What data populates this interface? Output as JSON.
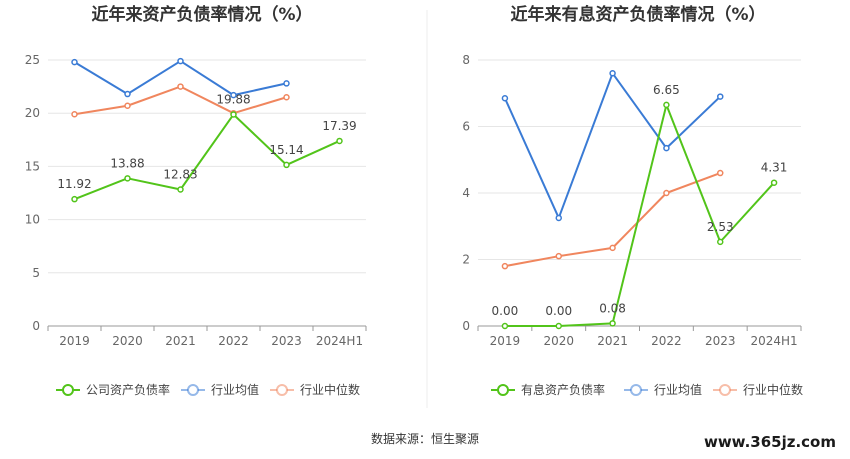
{
  "chart_data": [
    {
      "type": "line",
      "title": "近年来资产负债率情况（%）",
      "categories": [
        "2019",
        "2020",
        "2021",
        "2022",
        "2023",
        "2024H1"
      ],
      "ylim": [
        0,
        25
      ],
      "yticks": [
        0,
        5,
        10,
        15,
        20,
        25
      ],
      "grid": true,
      "legend_position": "bottom",
      "series": [
        {
          "name": "公司资产负债率",
          "color": "#52c41a",
          "values": [
            11.92,
            13.88,
            12.83,
            19.88,
            15.14,
            17.39
          ],
          "labels": [
            "11.92",
            "13.88",
            "12.83",
            "19.88",
            "15.14",
            "17.39"
          ]
        },
        {
          "name": "行业均值",
          "color": "#3a7bd5",
          "values": [
            24.8,
            21.8,
            24.9,
            21.7,
            22.8,
            null
          ]
        },
        {
          "name": "行业中位数",
          "color": "#f0865e",
          "values": [
            19.9,
            20.7,
            22.5,
            20.0,
            21.5,
            null
          ]
        }
      ]
    },
    {
      "type": "line",
      "title": "近年来有息资产负债率情况（%）",
      "categories": [
        "2019",
        "2020",
        "2021",
        "2022",
        "2023",
        "2024H1"
      ],
      "ylim": [
        0,
        8
      ],
      "yticks": [
        0,
        2,
        4,
        6,
        8
      ],
      "grid": true,
      "legend_position": "bottom",
      "series": [
        {
          "name": "有息资产负债率",
          "color": "#52c41a",
          "values": [
            0.0,
            0.0,
            0.08,
            6.65,
            2.53,
            4.31
          ],
          "labels": [
            "0.00",
            "0.00",
            "0.08",
            "6.65",
            "2.53",
            "4.31"
          ]
        },
        {
          "name": "行业均值",
          "color": "#3a7bd5",
          "values": [
            6.85,
            3.25,
            7.6,
            5.35,
            6.9,
            null
          ]
        },
        {
          "name": "行业中位数",
          "color": "#f0865e",
          "values": [
            1.8,
            2.1,
            2.35,
            4.0,
            4.6,
            null
          ]
        }
      ]
    }
  ],
  "footer": {
    "source": "数据来源：恒生聚源",
    "watermark": "www.365jz.com"
  }
}
